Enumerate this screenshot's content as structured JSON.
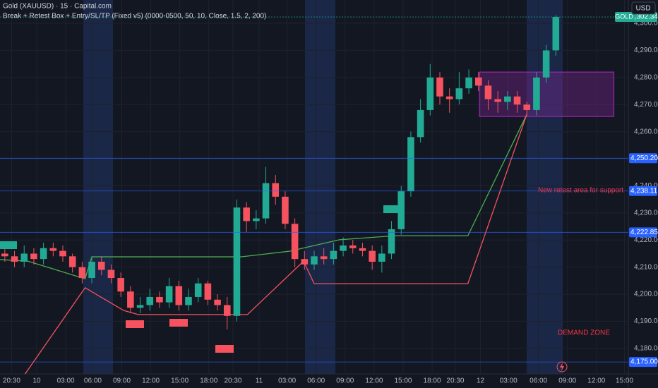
{
  "chart_data": {
    "type": "candlestick",
    "title": "Gold (XAUUSD) · 15 · Capital.com",
    "subtitle": "Break + Retest Box + Entry/SL/TP (Fixed v5) (0000-0500, 50, 10, Close, 1.5, 2, 200)",
    "currency": "USD",
    "symbol_tag": "GOLD",
    "up_color": "#22ab94",
    "down_color": "#f7525f",
    "grid": true,
    "xlim": [
      0,
      65
    ],
    "ylim": [
      4170.6,
      4308.6
    ],
    "yticks": [
      {
        "value": 4180,
        "label": "4,180.00"
      },
      {
        "value": 4190,
        "label": "4,190.00"
      },
      {
        "value": 4200,
        "label": "4,200.00"
      },
      {
        "value": 4210,
        "label": "4,210.00"
      },
      {
        "value": 4220,
        "label": "4,220.00"
      },
      {
        "value": 4230,
        "label": "4,230.00"
      },
      {
        "value": 4240,
        "label": "4,240.00"
      },
      {
        "value": 4250,
        "label": "4,250.00"
      },
      {
        "value": 4260,
        "label": "4,260.00"
      },
      {
        "value": 4270,
        "label": "4,270.00"
      },
      {
        "value": 4280,
        "label": "4,280.00"
      },
      {
        "value": 4290,
        "label": "4,290.00"
      },
      {
        "value": 4300,
        "label": "4,300.00"
      }
    ],
    "xticks": [
      {
        "value": 1.2,
        "label": "20:30"
      },
      {
        "value": 3.8,
        "label": "10"
      },
      {
        "value": 6.8,
        "label": "03:00"
      },
      {
        "value": 9.6,
        "label": "06:00"
      },
      {
        "value": 12.6,
        "label": "09:00"
      },
      {
        "value": 15.6,
        "label": "12:00"
      },
      {
        "value": 18.6,
        "label": "15:00"
      },
      {
        "value": 21.6,
        "label": "18:00"
      },
      {
        "value": 24.1,
        "label": "20:30"
      },
      {
        "value": 26.8,
        "label": "11"
      },
      {
        "value": 29.7,
        "label": "03:00"
      },
      {
        "value": 32.7,
        "label": "06:00"
      },
      {
        "value": 35.7,
        "label": "09:00"
      },
      {
        "value": 38.7,
        "label": "12:00"
      },
      {
        "value": 41.7,
        "label": "15:00"
      },
      {
        "value": 44.7,
        "label": "18:00"
      },
      {
        "value": 47.1,
        "label": "20:30"
      },
      {
        "value": 49.7,
        "label": "12"
      },
      {
        "value": 52.6,
        "label": "03:00"
      },
      {
        "value": 55.7,
        "label": "06:00"
      },
      {
        "value": 58.7,
        "label": "09:00"
      },
      {
        "value": 61.7,
        "label": "12:00"
      },
      {
        "value": 64.6,
        "label": "15:00"
      }
    ],
    "x": [
      0.5,
      1.5,
      2.5,
      3.5,
      4.5,
      5.5,
      6.5,
      7.5,
      8.5,
      9.5,
      10.5,
      11.5,
      12.5,
      13.5,
      14.5,
      15.5,
      16.5,
      17.5,
      18.5,
      19.5,
      20.5,
      21.5,
      22.5,
      23.5,
      24.5,
      25.5,
      26.5,
      27.5,
      28.5,
      29.5,
      30.5,
      31.5,
      32.5,
      33.5,
      34.5,
      35.5,
      36.5,
      37.5,
      38.5,
      39.5,
      40.5,
      41.5,
      42.5,
      43.5,
      44.5,
      45.5,
      46.5,
      47.5,
      48.5,
      49.5,
      50.5,
      51.5,
      52.5,
      53.5,
      54.5,
      55.5,
      56.5,
      57.5
    ],
    "open": [
      4215,
      4214,
      4212,
      4215,
      4213,
      4217,
      4216,
      4214,
      4210,
      4206,
      4212,
      4209,
      4206,
      4201,
      4195,
      4196,
      4199,
      4197,
      4203,
      4196,
      4199,
      4204,
      4198,
      4196,
      4192,
      4232,
      4227,
      4228,
      4241,
      4236,
      4226,
      4213,
      4211,
      4214,
      4213,
      4216,
      4218,
      4217,
      4216,
      4212,
      4215,
      4224,
      4238,
      4258,
      4268,
      4280,
      4273,
      4272,
      4276,
      4280,
      4277,
      4272,
      4271,
      4273,
      4270,
      4268,
      4280,
      4290
    ],
    "high": [
      4217,
      4216,
      4218,
      4217,
      4219,
      4219,
      4218,
      4215,
      4212,
      4214,
      4214,
      4211,
      4208,
      4203,
      4199,
      4202,
      4201,
      4206,
      4205,
      4202,
      4206,
      4205,
      4200,
      4199,
      4235,
      4234,
      4231,
      4247,
      4244,
      4238,
      4228,
      4216,
      4216,
      4217,
      4219,
      4221,
      4220,
      4219,
      4218,
      4218,
      4227,
      4240,
      4260,
      4272,
      4285,
      4282,
      4276,
      4282,
      4283,
      4282,
      4279,
      4275,
      4275,
      4275,
      4271,
      4282,
      4292,
      4303
    ],
    "low": [
      4212,
      4210,
      4210,
      4211,
      4211,
      4214,
      4212,
      4208,
      4204,
      4204,
      4207,
      4204,
      4199,
      4193,
      4193,
      4194,
      4195,
      4195,
      4194,
      4194,
      4197,
      4196,
      4194,
      4187,
      4190,
      4223,
      4224,
      4226,
      4233,
      4224,
      4210,
      4209,
      4209,
      4211,
      4211,
      4214,
      4215,
      4214,
      4209,
      4208,
      4213,
      4222,
      4236,
      4256,
      4266,
      4270,
      4267,
      4270,
      4274,
      4275,
      4268,
      4267,
      4268,
      4267,
      4266,
      4266,
      4278,
      4288
    ],
    "close": [
      4214,
      4212,
      4215,
      4213,
      4217,
      4216,
      4214,
      4210,
      4206,
      4212,
      4209,
      4206,
      4201,
      4195,
      4196,
      4199,
      4197,
      4203,
      4196,
      4199,
      4204,
      4198,
      4196,
      4192,
      4232,
      4227,
      4228,
      4241,
      4236,
      4226,
      4213,
      4211,
      4214,
      4213,
      4216,
      4218,
      4217,
      4216,
      4212,
      4215,
      4224,
      4238,
      4258,
      4268,
      4280,
      4273,
      4272,
      4276,
      4280,
      4277,
      4272,
      4271,
      4273,
      4270,
      4268,
      4280,
      4290,
      4302.34
    ],
    "lines": [
      {
        "color": "#4caf50",
        "x": [
          0,
          2.9,
          8.8,
          9.5,
          24.9,
          30.0,
          35.1,
          40.9,
          48.4,
          54.5
        ],
        "values": [
          4212.8,
          4212.2,
          4205.7,
          4213.8,
          4213.8,
          4215.9,
          4220.1,
          4221.6,
          4221.6,
          4266.4
        ]
      },
      {
        "color": "#f7525f",
        "x": [
          2.6,
          8.8,
          12.8,
          14.3,
          25.6,
          31.4,
          32.5,
          48.4,
          54.5
        ],
        "values": [
          4170.6,
          4202.4,
          4194.0,
          4192.5,
          4192.5,
          4212.2,
          4203.9,
          4203.9,
          4266.4
        ]
      }
    ],
    "zone": {
      "x": [
        49.6,
        63.5
      ],
      "y": [
        4265.6,
        4282.0
      ],
      "color": "#9c27b0"
    },
    "price_lines": [
      {
        "value": 4302.34,
        "label": "4,302.34",
        "color": "#22ab94"
      },
      {
        "value": 4250.2,
        "label": "4,250.20",
        "color": "#2962ff"
      },
      {
        "value": 4238.11,
        "label": "4,238.11",
        "color": "#2962ff"
      },
      {
        "value": 4222.85,
        "label": "4,222.85",
        "color": "#2962ff"
      },
      {
        "value": 4175.0,
        "label": "4,175.00",
        "color": "#2962ff"
      }
    ],
    "annotations": [
      "New retest area for support",
      "DEMAND ZONE"
    ]
  }
}
